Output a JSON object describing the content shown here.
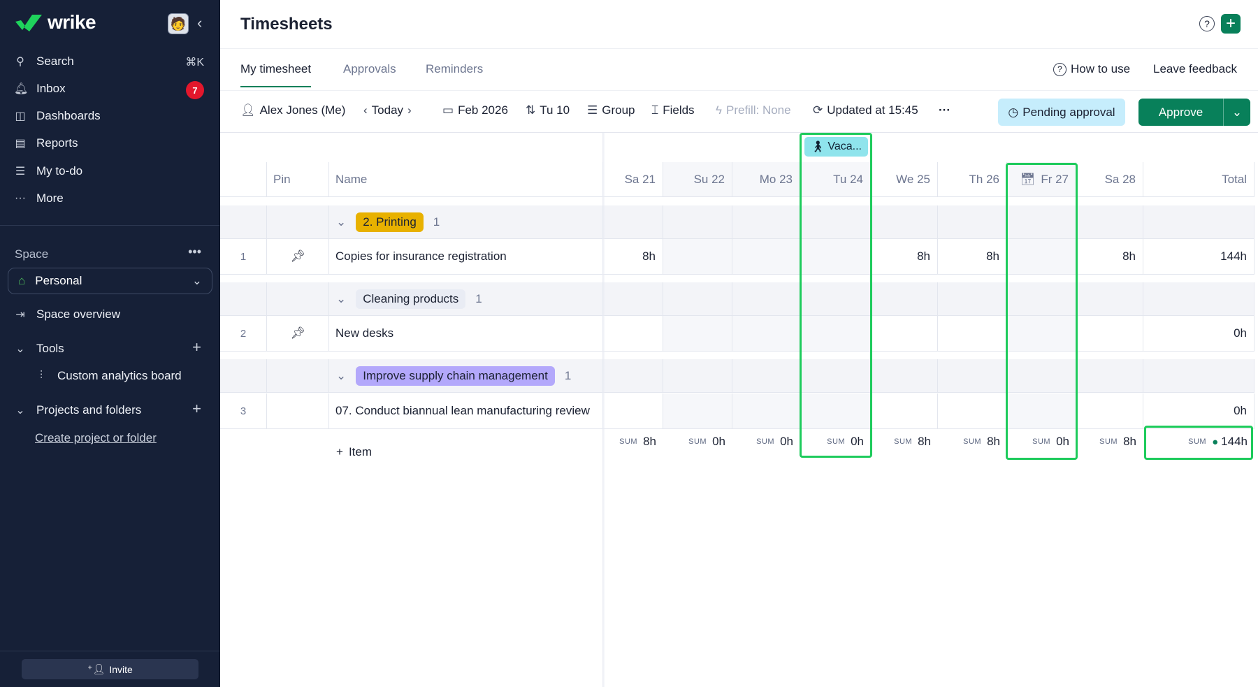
{
  "sidebar": {
    "logo": "wrike",
    "nav": [
      {
        "label": "Search",
        "icon": "search-icon",
        "shortcut": "⌘K"
      },
      {
        "label": "Inbox",
        "icon": "bell-icon",
        "badge": "7"
      },
      {
        "label": "Dashboards",
        "icon": "dashboard-icon"
      },
      {
        "label": "Reports",
        "icon": "reports-icon"
      },
      {
        "label": "My to-do",
        "icon": "todo-icon"
      },
      {
        "label": "More",
        "icon": "more-icon"
      }
    ],
    "space_label": "Space",
    "space_selected": "Personal",
    "space_overview": "Space overview",
    "tools_label": "Tools",
    "tools_item": "Custom analytics board",
    "projects_label": "Projects and folders",
    "create_link": "Create project or folder",
    "invite": "Invite"
  },
  "header": {
    "title": "Timesheets"
  },
  "tabs": [
    {
      "label": "My timesheet",
      "active": true
    },
    {
      "label": "Approvals"
    },
    {
      "label": "Reminders"
    }
  ],
  "links": {
    "how_to_use": "How to use",
    "feedback": "Leave feedback"
  },
  "toolbar": {
    "user": "Alex Jones (Me)",
    "today": "Today",
    "month": "Feb 2026",
    "sort": "Tu 10",
    "group": "Group",
    "fields": "Fields",
    "prefill": "Prefill: None",
    "updated": "Updated at 15:45",
    "status": "Pending approval",
    "approve": "Approve"
  },
  "vacation": "Vaca...",
  "columns": {
    "pin": "Pin",
    "name": "Name",
    "days": [
      "Sa 21",
      "Su 22",
      "Mo 23",
      "Tu 24",
      "We 25",
      "Th 26",
      "Fr 27",
      "Sa 28"
    ],
    "total": "Total"
  },
  "groups": [
    {
      "label": "2. Printing",
      "count": "1",
      "color": "#e8b100",
      "rows": [
        {
          "num": "1",
          "pinned": true,
          "name": "Copies for insurance registration",
          "hours": [
            "8h",
            "",
            "",
            "",
            "8h",
            "8h",
            "",
            "8h"
          ],
          "total": "144h"
        }
      ]
    },
    {
      "label": "Cleaning products",
      "count": "1",
      "color": "#e9ecf4",
      "rows": [
        {
          "num": "2",
          "pinned": true,
          "name": "New desks",
          "hours": [
            "",
            "",
            "",
            "",
            "",
            "",
            "",
            ""
          ],
          "total": "0h"
        }
      ]
    },
    {
      "label": "Improve supply chain management",
      "count": "1",
      "color": "#b3a8fb",
      "rows": [
        {
          "num": "3",
          "pinned": false,
          "name": "07. Conduct biannual lean manufacturing review",
          "hours": [
            "",
            "",
            "",
            "",
            "",
            "",
            "",
            ""
          ],
          "total": "0h"
        }
      ]
    }
  ],
  "sums": {
    "label": "SUM",
    "values": [
      "8h",
      "0h",
      "0h",
      "0h",
      "8h",
      "8h",
      "0h",
      "8h"
    ],
    "total": "144h"
  },
  "add_item": "Item",
  "colors": {
    "sidebar": "#162037",
    "accent": "#08805a",
    "highlight": "#1ecb5c"
  }
}
